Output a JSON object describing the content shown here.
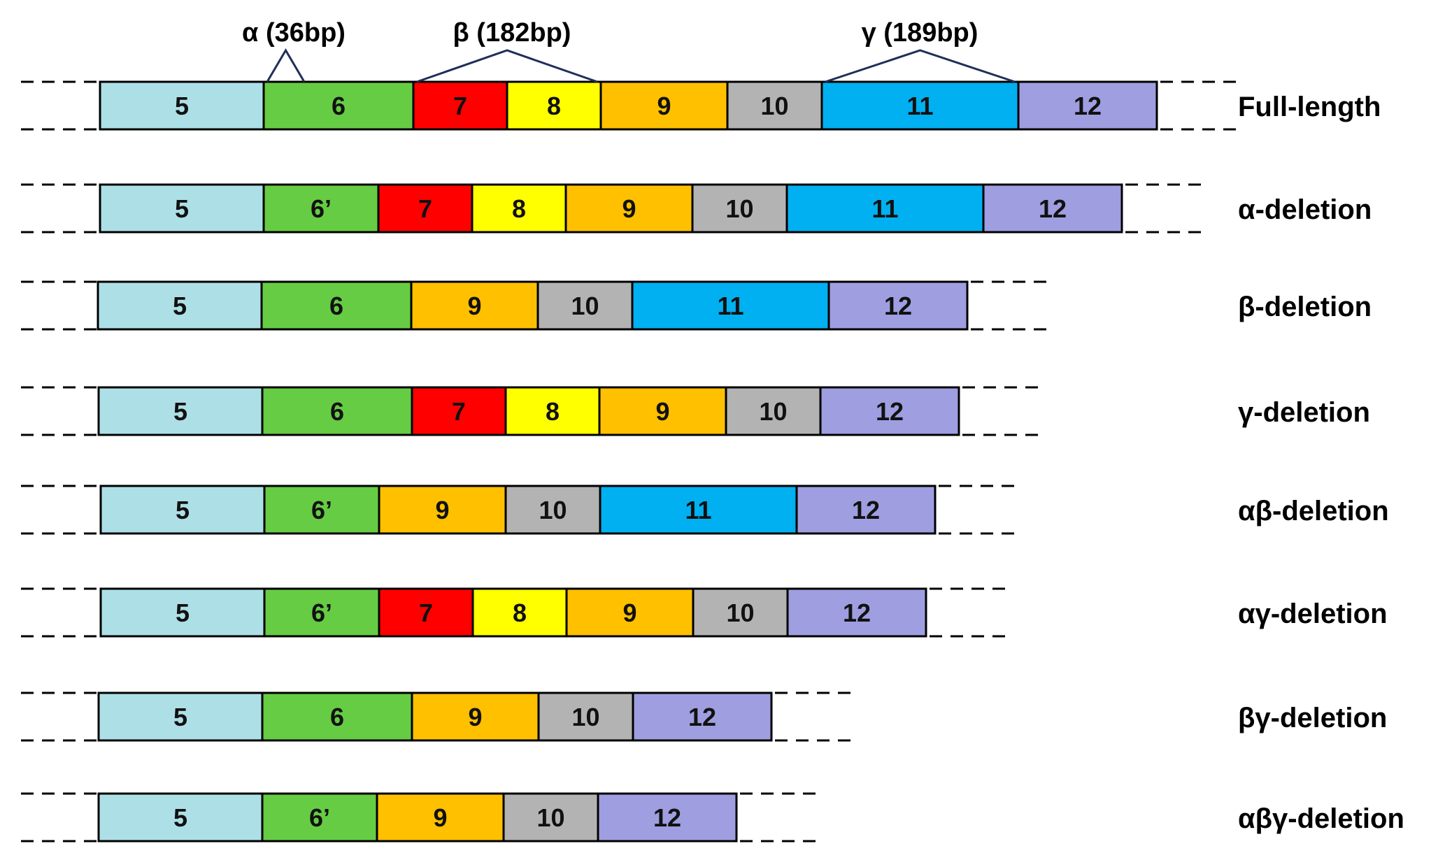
{
  "annotations": [
    {
      "id": "alpha",
      "label": "α (36bp)"
    },
    {
      "id": "beta",
      "label": "β (182bp)"
    },
    {
      "id": "gamma",
      "label": "γ (189bp)"
    }
  ],
  "colors": {
    "5": "#ade0e6",
    "6": "#66cc44",
    "6'": "#66cc44",
    "7": "#ff0000",
    "8": "#ffff00",
    "9": "#ffc000",
    "10": "#b3b3b3",
    "11": "#00b0f0",
    "12": "#9e9ee0"
  },
  "rows": [
    {
      "label": "Full-length",
      "segments": [
        "5",
        "6",
        "7",
        "8",
        "9",
        "10",
        "11",
        "12"
      ]
    },
    {
      "label": "α-deletion",
      "segments": [
        "5",
        "6’",
        "7",
        "8",
        "9",
        "10",
        "11",
        "12"
      ]
    },
    {
      "label": "β-deletion",
      "segments": [
        "5",
        "6",
        "9",
        "10",
        "11",
        "12"
      ]
    },
    {
      "label": "γ-deletion",
      "segments": [
        "5",
        "6",
        "7",
        "8",
        "9",
        "10",
        "12"
      ]
    },
    {
      "label": "αβ-deletion",
      "segments": [
        "5",
        "6’",
        "9",
        "10",
        "11",
        "12"
      ]
    },
    {
      "label": "αγ-deletion",
      "segments": [
        "5",
        "6’",
        "7",
        "8",
        "9",
        "10",
        "12"
      ]
    },
    {
      "label": "βγ-deletion",
      "segments": [
        "5",
        "6",
        "9",
        "10",
        "12"
      ]
    },
    {
      "label": "αβγ-deletion",
      "segments": [
        "5",
        "6’",
        "9",
        "10",
        "12"
      ]
    }
  ]
}
